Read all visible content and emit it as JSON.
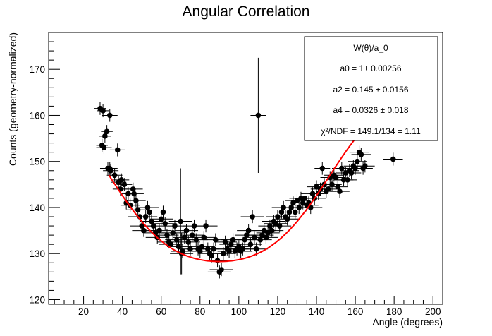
{
  "chart_data": {
    "type": "scatter",
    "title": "Angular Correlation",
    "xlabel": "Angle (degrees)",
    "ylabel": "Counts (geometry-normalized)",
    "xlim": [
      2,
      205
    ],
    "ylim": [
      119,
      178
    ],
    "xticks": [
      20,
      40,
      60,
      80,
      100,
      120,
      140,
      160,
      180,
      200
    ],
    "yticks": [
      120,
      130,
      140,
      150,
      160,
      170
    ],
    "grid": false,
    "colors": {
      "points": "#000000",
      "fit": "#ff0000"
    },
    "stats_box": {
      "title": "W(θ)/a_0",
      "lines": [
        "a0 = 1± 0.00256",
        "a2 = 0.145 ± 0.0156",
        "a4 = 0.0326 ± 0.018",
        "χ²/NDF = 149.1/134 = 1.11"
      ]
    },
    "fit": {
      "a2": 0.145,
      "a4": 0.0326,
      "scale": 136.5,
      "x_range": [
        33,
        180
      ]
    },
    "points": [
      [
        28.5,
        161.5,
        3,
        1.4
      ],
      [
        30,
        161,
        3,
        1.4
      ],
      [
        29.5,
        153.5,
        3,
        1.4
      ],
      [
        31,
        155.5,
        3,
        1.4
      ],
      [
        32,
        156.5,
        3,
        1.4
      ],
      [
        33.5,
        160,
        4,
        1.4
      ],
      [
        30.5,
        153,
        4,
        1.4
      ],
      [
        32.5,
        148.5,
        4,
        1.4
      ],
      [
        33.5,
        148.5,
        4,
        1.4
      ],
      [
        34,
        148,
        4,
        1.4
      ],
      [
        37.5,
        152.5,
        4,
        1.4
      ],
      [
        36,
        147,
        4,
        1.4
      ],
      [
        38,
        145.5,
        4,
        1.4
      ],
      [
        39.5,
        146,
        4,
        1.4
      ],
      [
        41,
        145,
        4,
        1.4
      ],
      [
        39,
        144,
        4,
        1.4
      ],
      [
        43,
        143,
        4,
        1.4
      ],
      [
        42,
        141,
        5,
        1.4
      ],
      [
        44,
        140.5,
        5,
        1.4
      ],
      [
        45.5,
        144,
        5,
        1.4
      ],
      [
        46,
        143,
        5,
        1.4
      ],
      [
        47,
        141.5,
        5,
        1.4
      ],
      [
        48,
        139.5,
        6,
        1.4
      ],
      [
        49,
        138,
        6,
        1.4
      ],
      [
        50,
        136,
        6,
        1.4
      ],
      [
        51,
        135,
        6,
        1.4
      ],
      [
        52,
        138,
        6,
        1.4
      ],
      [
        53,
        140,
        6,
        1.4
      ],
      [
        54,
        139,
        6,
        1.4
      ],
      [
        55,
        137,
        6,
        1.4
      ],
      [
        56,
        136,
        6,
        1.4
      ],
      [
        57,
        134.5,
        6,
        1.4
      ],
      [
        58,
        133.5,
        6,
        1.4
      ],
      [
        59,
        135,
        6,
        1.4
      ],
      [
        60,
        137.5,
        6,
        1.4
      ],
      [
        61,
        139,
        6,
        1.4
      ],
      [
        62,
        136.5,
        6,
        1.4
      ],
      [
        63,
        134,
        6,
        1.4
      ],
      [
        64,
        132.5,
        6,
        1.4
      ],
      [
        65,
        132,
        6,
        1.4
      ],
      [
        66,
        134.5,
        6,
        1.4
      ],
      [
        67,
        136,
        6,
        1.4
      ],
      [
        68,
        133,
        6,
        1.4
      ],
      [
        69,
        131.5,
        6,
        1.4
      ],
      [
        70,
        137,
        6,
        11.5
      ],
      [
        70.5,
        130,
        6,
        4.5
      ],
      [
        71,
        130.5,
        6,
        1.4
      ],
      [
        72,
        133.5,
        6,
        1.4
      ],
      [
        73,
        135,
        6,
        1.4
      ],
      [
        74,
        132.5,
        6,
        1.4
      ],
      [
        75,
        131,
        6,
        1.4
      ],
      [
        76,
        134,
        6,
        1.4
      ],
      [
        77,
        136,
        6,
        1.4
      ],
      [
        78,
        133,
        6,
        1.4
      ],
      [
        79,
        131,
        6,
        1.4
      ],
      [
        80,
        130.5,
        6,
        1.4
      ],
      [
        81,
        131.5,
        6,
        1.4
      ],
      [
        82,
        133.5,
        6,
        1.4
      ],
      [
        83,
        136,
        6,
        1.4
      ],
      [
        84,
        131,
        6,
        1.4
      ],
      [
        85,
        130,
        6,
        1.4
      ],
      [
        86,
        129.5,
        6,
        1.4
      ],
      [
        87,
        131,
        6,
        1.4
      ],
      [
        88,
        133,
        6,
        1.4
      ],
      [
        89,
        128.5,
        6,
        1.4
      ],
      [
        90,
        126,
        6,
        1.4
      ],
      [
        91,
        126.5,
        6,
        1.4
      ],
      [
        92,
        130,
        6,
        1.4
      ],
      [
        93,
        132.5,
        6,
        1.4
      ],
      [
        94,
        131,
        6,
        1.4
      ],
      [
        95,
        130.5,
        6,
        1.4
      ],
      [
        96,
        132,
        6,
        1.4
      ],
      [
        97,
        133,
        6,
        1.4
      ],
      [
        98,
        130.5,
        6,
        1.4
      ],
      [
        99,
        131,
        6,
        1.4
      ],
      [
        100,
        131.5,
        6,
        1.4
      ],
      [
        101,
        130.5,
        6,
        1.4
      ],
      [
        102,
        131,
        6,
        1.4
      ],
      [
        103,
        133,
        6,
        1.4
      ],
      [
        104,
        134,
        6,
        1.4
      ],
      [
        105,
        135,
        6,
        1.4
      ],
      [
        106,
        132,
        6,
        1.4
      ],
      [
        107,
        138,
        6,
        1.4
      ],
      [
        108,
        133.5,
        6,
        1.4
      ],
      [
        109,
        131,
        6,
        1.4
      ],
      [
        110,
        160,
        4,
        12.5
      ],
      [
        111,
        133,
        6,
        1.4
      ],
      [
        112,
        134,
        6,
        1.4
      ],
      [
        113,
        135,
        6,
        1.4
      ],
      [
        114,
        133.5,
        6,
        1.4
      ],
      [
        115,
        134.5,
        6,
        1.4
      ],
      [
        116,
        136,
        6,
        1.4
      ],
      [
        117,
        135,
        6,
        1.4
      ],
      [
        118,
        137,
        6,
        1.4
      ],
      [
        119,
        136.5,
        6,
        1.4
      ],
      [
        120,
        138,
        6,
        1.4
      ],
      [
        121,
        136,
        6,
        1.4
      ],
      [
        122,
        139,
        6,
        1.4
      ],
      [
        123,
        140,
        6,
        1.4
      ],
      [
        124,
        138,
        6,
        1.4
      ],
      [
        125,
        137.5,
        6,
        1.4
      ],
      [
        126,
        139,
        6,
        1.4
      ],
      [
        127,
        140,
        6,
        1.4
      ],
      [
        128,
        141,
        6,
        1.4
      ],
      [
        129,
        139,
        6,
        1.4
      ],
      [
        130,
        141.5,
        6,
        1.4
      ],
      [
        131,
        140,
        6,
        1.4
      ],
      [
        132,
        142,
        6,
        1.4
      ],
      [
        133,
        141,
        6,
        1.4
      ],
      [
        134,
        142,
        6,
        1.4
      ],
      [
        135,
        140.5,
        6,
        1.4
      ],
      [
        136,
        141,
        6,
        1.4
      ],
      [
        137,
        140,
        6,
        1.4
      ],
      [
        138,
        143,
        6,
        1.4
      ],
      [
        139,
        142,
        6,
        1.4
      ],
      [
        140,
        144.5,
        5,
        1.4
      ],
      [
        141,
        143,
        5,
        1.4
      ],
      [
        142,
        144,
        5,
        1.4
      ],
      [
        143,
        148.5,
        4,
        1.4
      ],
      [
        144,
        145,
        5,
        1.4
      ],
      [
        145,
        143.5,
        5,
        1.4
      ],
      [
        146,
        144,
        5,
        1.4
      ],
      [
        147,
        146.5,
        5,
        1.4
      ],
      [
        148,
        145,
        5,
        1.4
      ],
      [
        149,
        147,
        5,
        1.4
      ],
      [
        150,
        146.5,
        5,
        1.4
      ],
      [
        151,
        144.5,
        5,
        1.4
      ],
      [
        152,
        143.5,
        5,
        1.4
      ],
      [
        153,
        148.5,
        5,
        1.4
      ],
      [
        154,
        146,
        5,
        1.4
      ],
      [
        155,
        147.5,
        5,
        1.4
      ],
      [
        156,
        146,
        5,
        1.4
      ],
      [
        157,
        148,
        5,
        1.4
      ],
      [
        158,
        147.5,
        5,
        1.4
      ],
      [
        159,
        149,
        5,
        1.4
      ],
      [
        160,
        148.5,
        5,
        1.4
      ],
      [
        161,
        150,
        5,
        1.4
      ],
      [
        162,
        152,
        5,
        1.4
      ],
      [
        163,
        151.5,
        5,
        1.4
      ],
      [
        164,
        148.5,
        5,
        1.4
      ],
      [
        165,
        149,
        5,
        1.4
      ],
      [
        179.5,
        150.5,
        5,
        1.4
      ]
    ]
  }
}
